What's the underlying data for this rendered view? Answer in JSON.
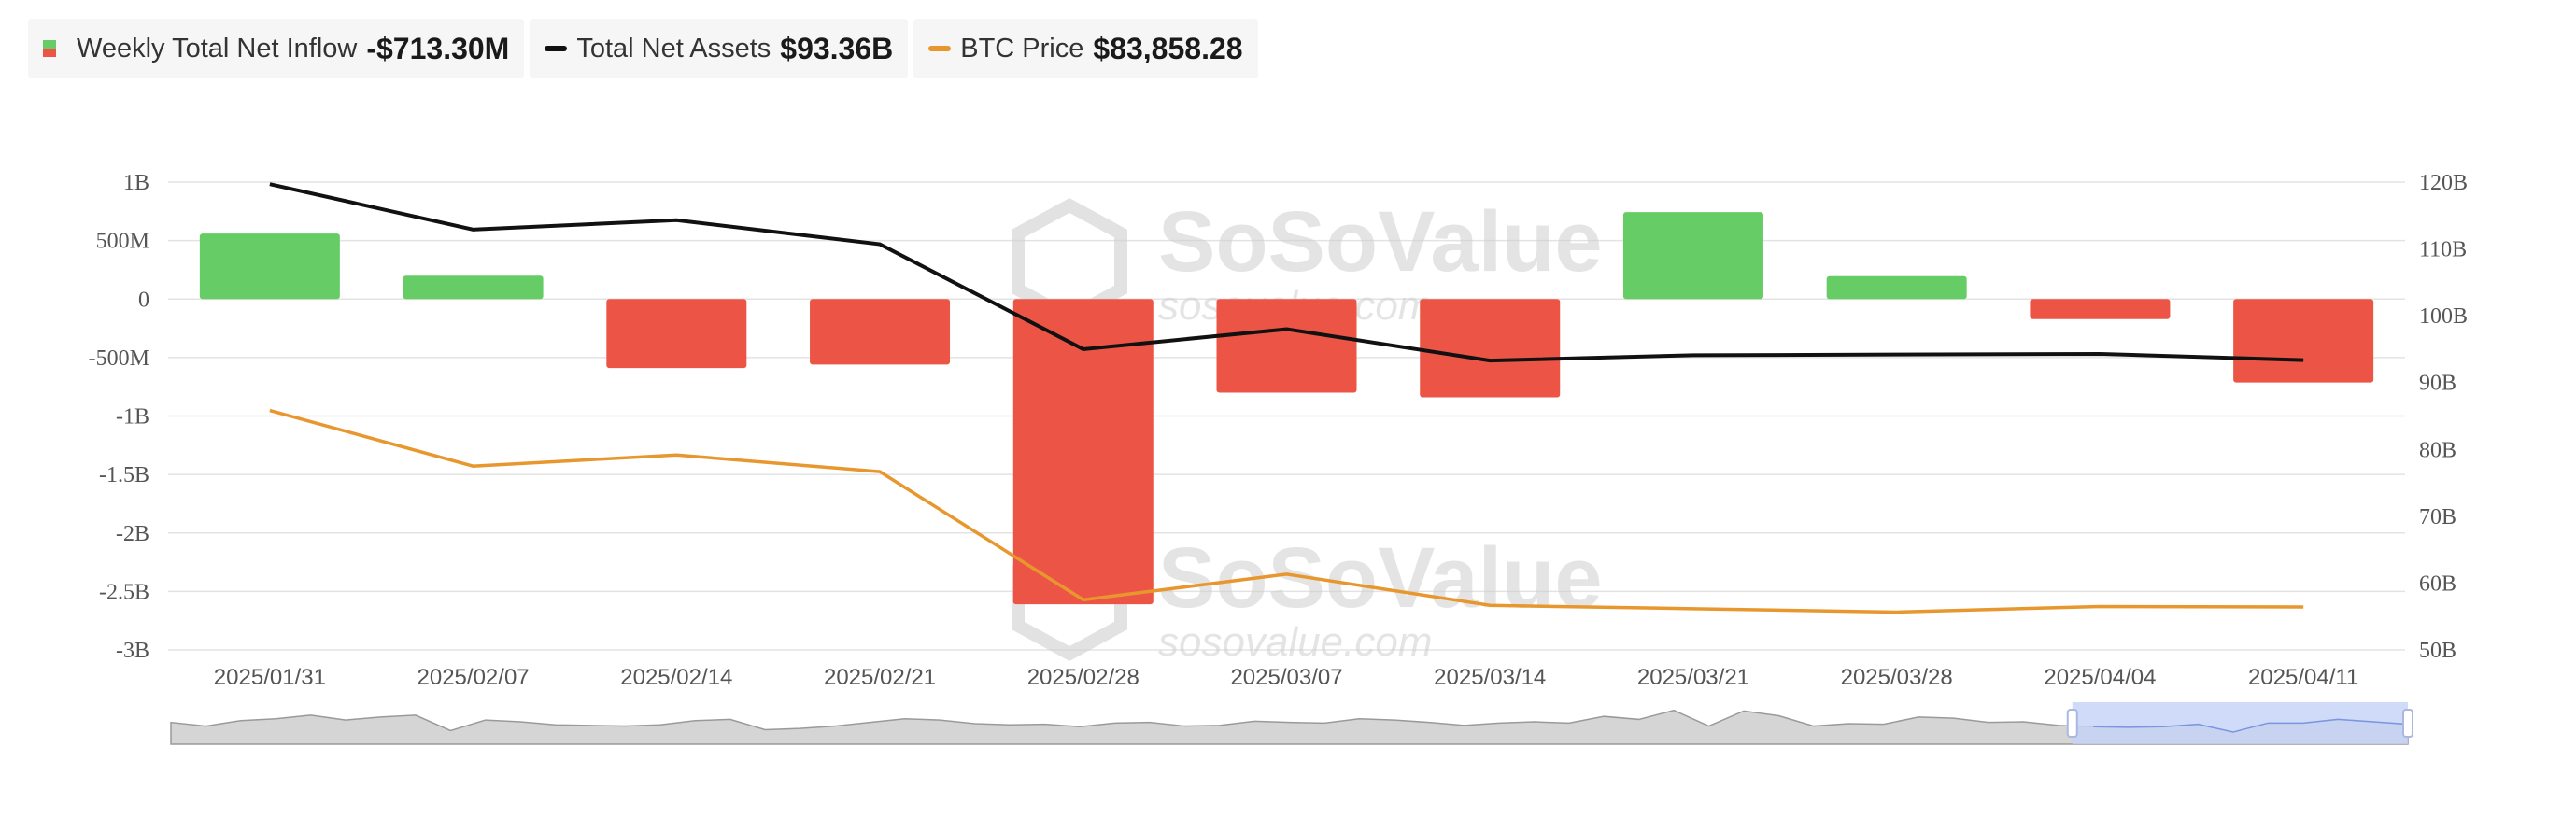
{
  "legend": {
    "inflow": {
      "label": "Weekly Total Net Inflow",
      "value": "-$713.30M"
    },
    "assets": {
      "label": "Total Net Assets",
      "value": "$93.36B"
    },
    "btc": {
      "label": "BTC Price",
      "value": "$83,858.28"
    }
  },
  "watermark": {
    "brand": "SoSoValue",
    "site": "sosovalue.com"
  },
  "colors": {
    "positive": "#66cd66",
    "negative": "#ec5545",
    "assets_line": "#111111",
    "btc_line": "#e8972e",
    "grid": "#e3e3e3",
    "brush": "#c3d2f6"
  },
  "chart_data": {
    "type": "bar",
    "categories": [
      "2025/01/31",
      "2025/02/07",
      "2025/02/14",
      "2025/02/21",
      "2025/02/28",
      "2025/03/07",
      "2025/03/14",
      "2025/03/21",
      "2025/03/28",
      "2025/04/04",
      "2025/04/11"
    ],
    "series": [
      {
        "name": "Weekly Total Net Inflow",
        "type": "bar",
        "axis": "left",
        "values": [
          560000000,
          200000000,
          -590000000,
          -560000000,
          -2610000000,
          -800000000,
          -840000000,
          744000000,
          196000000,
          -172000000,
          -713300000
        ]
      },
      {
        "name": "Total Net Assets",
        "type": "line",
        "axis": "right",
        "values": [
          119700000000,
          112900000000,
          114300000000,
          110700000000,
          95000000000,
          98000000000,
          93300000000,
          94100000000,
          94200000000,
          94300000000,
          93360000000
        ]
      },
      {
        "name": "BTC Price",
        "type": "line",
        "axis": "left_scaled",
        "values": [
          101500,
          96500,
          97500,
          96000,
          84500,
          86800,
          84000,
          83700,
          83400,
          83900,
          83858.28
        ]
      }
    ],
    "y_left": {
      "ticks": [
        "1B",
        "500M",
        "0",
        "-500M",
        "-1B",
        "-1.5B",
        "-2B",
        "-2.5B",
        "-3B"
      ],
      "range": [
        -3000000000,
        1000000000
      ]
    },
    "y_right": {
      "ticks": [
        "120B",
        "110B",
        "100B",
        "90B",
        "80B",
        "70B",
        "60B",
        "50B"
      ],
      "range": [
        50000000000,
        120000000000
      ]
    },
    "btc_scale": {
      "range": [
        80000,
        122000
      ]
    },
    "grid": true,
    "legend_position": "top-left",
    "overview": {
      "values": [
        0.72,
        0.6,
        0.78,
        0.84,
        0.96,
        0.8,
        0.9,
        0.96,
        0.45,
        0.8,
        0.74,
        0.64,
        0.62,
        0.6,
        0.64,
        0.78,
        0.82,
        0.48,
        0.52,
        0.6,
        0.72,
        0.84,
        0.8,
        0.68,
        0.64,
        0.66,
        0.58,
        0.7,
        0.72,
        0.6,
        0.62,
        0.76,
        0.72,
        0.7,
        0.84,
        0.8,
        0.72,
        0.62,
        0.7,
        0.74,
        0.7,
        0.92,
        0.82,
        1.12,
        0.6,
        1.1,
        0.94,
        0.6,
        0.68,
        0.66,
        0.9,
        0.86,
        0.72,
        0.74,
        0.62,
        0.58,
        0.56,
        0.58,
        0.66,
        0.4,
        0.7,
        0.7,
        0.82,
        0.74,
        0.66
      ],
      "selection": [
        0.85,
        1.0
      ]
    }
  }
}
